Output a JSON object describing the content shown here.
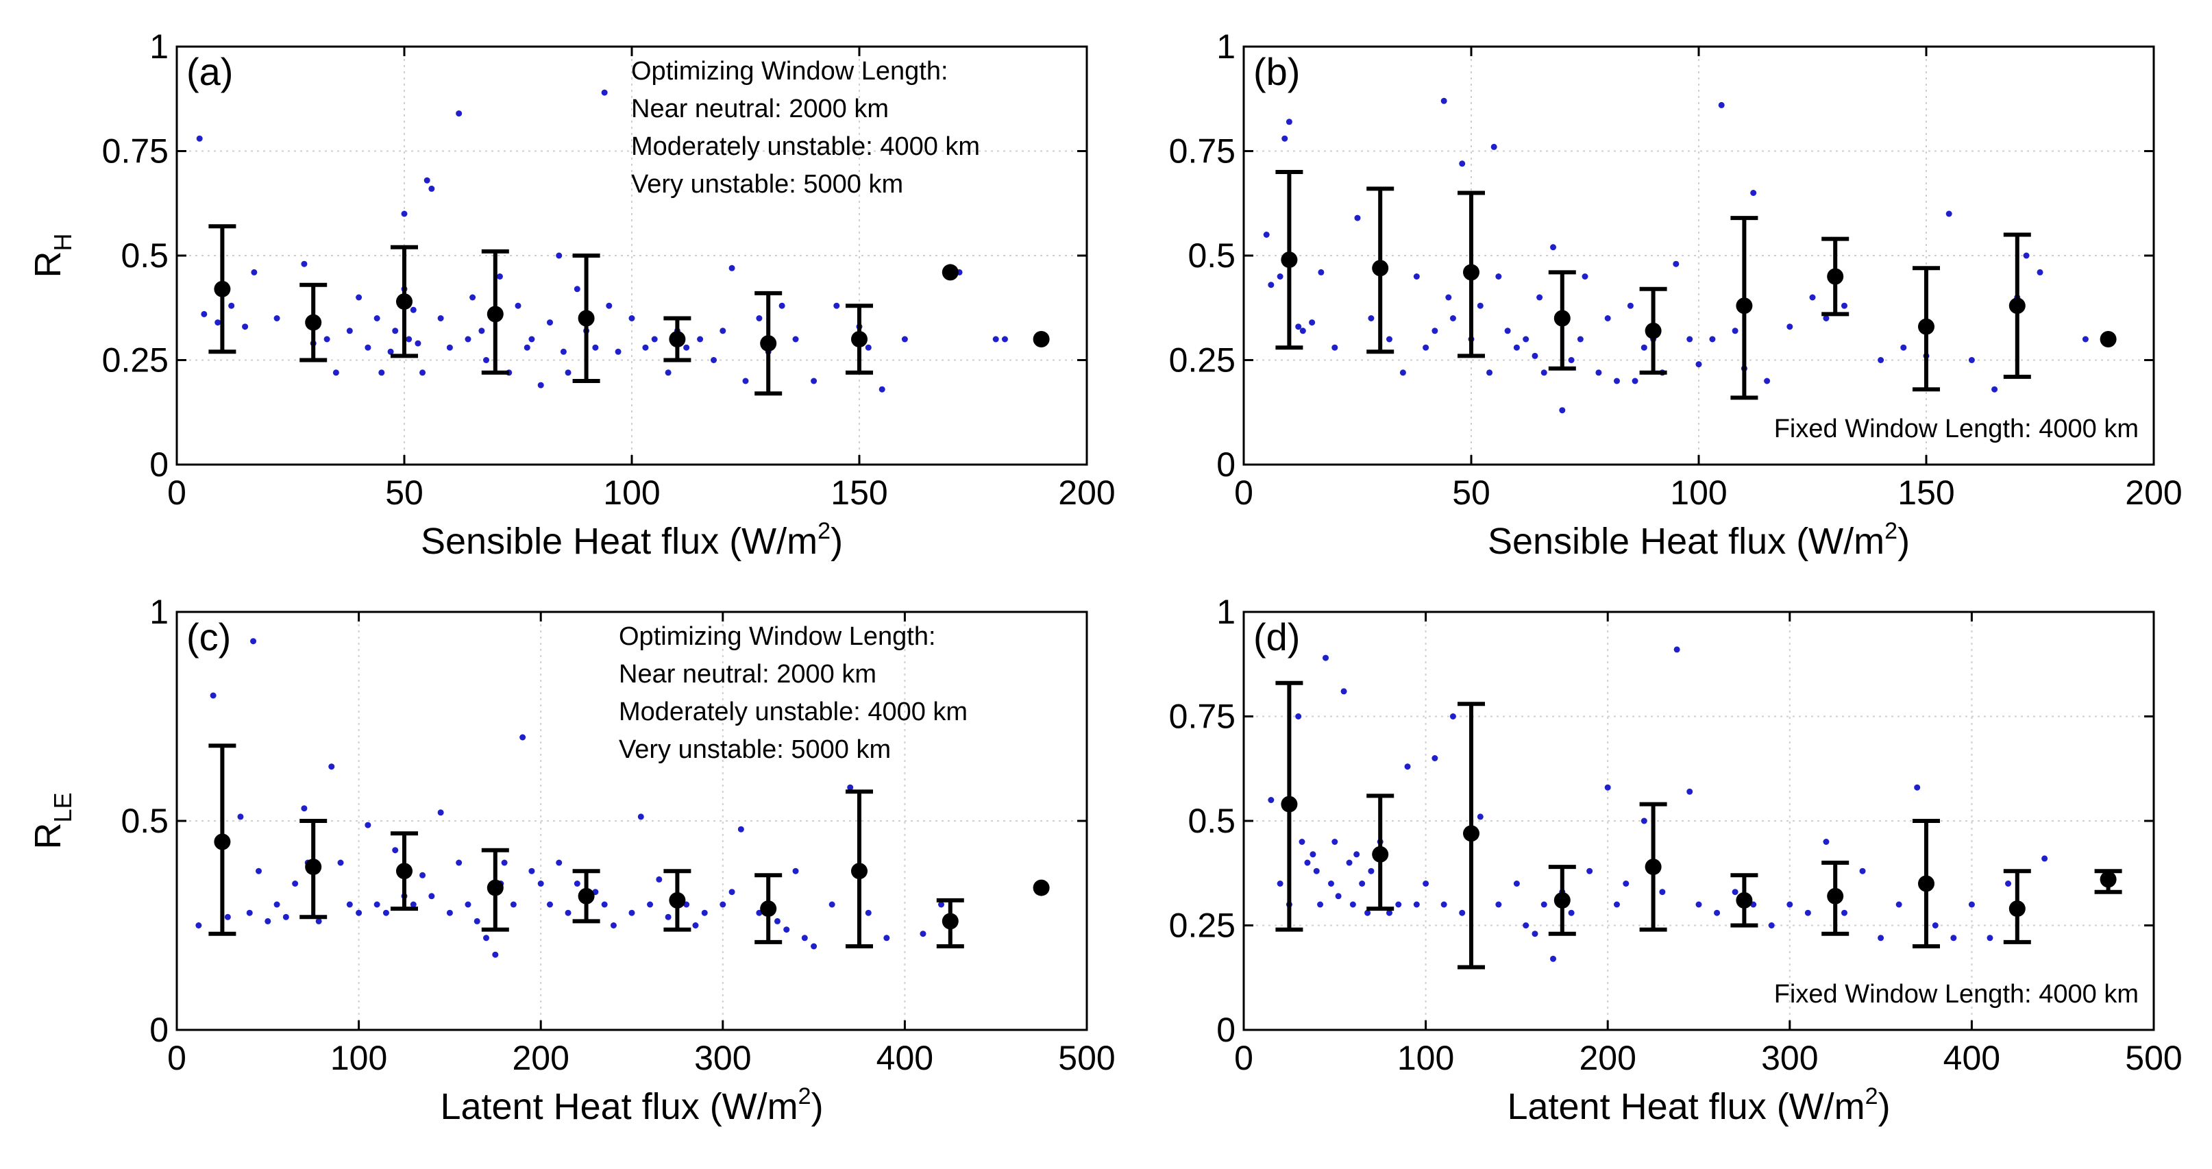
{
  "chart_data": [
    {
      "type": "scatter",
      "panel_label": "(a)",
      "xlabel": "Sensible Heat flux (W/m",
      "xlabel_sup": "2",
      "xlabel_end": ")",
      "ylabel": "R",
      "ylabel_sub": "H",
      "xlim": [
        0,
        200
      ],
      "ylim": [
        0,
        1
      ],
      "xticks": [
        0,
        50,
        100,
        150,
        200
      ],
      "yticks": [
        0,
        0.25,
        0.5,
        0.75,
        1
      ],
      "ytick_labels": [
        "0",
        "0.25",
        "0.5",
        "0.75",
        "1"
      ],
      "annotation": [
        "Optimizing Window Length:",
        "Near neutral: 2000 km",
        "Moderately unstable: 4000 km",
        "Very unstable: 5000 km"
      ],
      "annotation_position": "top-right",
      "grid": true,
      "scatter": {
        "color": "#1f1fcc",
        "x": [
          5,
          6,
          9,
          10,
          12,
          15,
          17,
          22,
          28,
          30,
          33,
          35,
          38,
          40,
          42,
          44,
          45,
          47,
          48,
          50,
          50,
          51,
          52,
          53,
          54,
          55,
          56,
          58,
          60,
          62,
          64,
          65,
          67,
          68,
          70,
          71,
          73,
          75,
          77,
          78,
          80,
          82,
          84,
          85,
          86,
          88,
          90,
          92,
          94,
          95,
          97,
          100,
          103,
          105,
          108,
          110,
          112,
          115,
          118,
          120,
          122,
          125,
          128,
          130,
          133,
          136,
          140,
          145,
          150,
          152,
          155,
          160,
          172,
          180,
          182
        ],
        "y": [
          0.78,
          0.36,
          0.34,
          0.43,
          0.38,
          0.33,
          0.46,
          0.35,
          0.48,
          0.29,
          0.3,
          0.22,
          0.32,
          0.4,
          0.28,
          0.35,
          0.22,
          0.27,
          0.32,
          0.6,
          0.42,
          0.3,
          0.37,
          0.29,
          0.22,
          0.68,
          0.66,
          0.35,
          0.28,
          0.84,
          0.3,
          0.4,
          0.32,
          0.25,
          0.35,
          0.45,
          0.22,
          0.38,
          0.28,
          0.3,
          0.19,
          0.34,
          0.5,
          0.27,
          0.22,
          0.42,
          0.32,
          0.28,
          0.89,
          0.38,
          0.27,
          0.35,
          0.28,
          0.3,
          0.22,
          0.32,
          0.28,
          0.3,
          0.25,
          0.32,
          0.47,
          0.2,
          0.35,
          0.27,
          0.38,
          0.3,
          0.2,
          0.38,
          0.33,
          0.28,
          0.18,
          0.3,
          0.46,
          0.3,
          0.3
        ]
      },
      "binned_means": {
        "x": [
          10,
          30,
          50,
          70,
          90,
          110,
          130,
          150,
          170,
          190
        ],
        "mean": [
          0.42,
          0.34,
          0.39,
          0.36,
          0.35,
          0.3,
          0.29,
          0.3,
          0.46,
          0.3
        ],
        "lower": [
          0.27,
          0.25,
          0.26,
          0.22,
          0.2,
          0.25,
          0.17,
          0.22,
          null,
          null
        ],
        "upper": [
          0.57,
          0.43,
          0.52,
          0.51,
          0.5,
          0.35,
          0.41,
          0.38,
          null,
          null
        ]
      }
    },
    {
      "type": "scatter",
      "panel_label": "(b)",
      "xlabel": "Sensible Heat flux (W/m",
      "xlabel_sup": "2",
      "xlabel_end": ")",
      "ylabel": "",
      "ylabel_sub": "",
      "xlim": [
        0,
        200
      ],
      "ylim": [
        0,
        1
      ],
      "xticks": [
        0,
        50,
        100,
        150,
        200
      ],
      "yticks": [
        0,
        0.25,
        0.5,
        0.75,
        1
      ],
      "ytick_labels": [
        "0",
        "0.25",
        "0.5",
        "0.75",
        "1"
      ],
      "annotation": [
        "Fixed Window Length: 4000 km"
      ],
      "annotation_position": "bottom-right",
      "grid": true,
      "scatter": {
        "color": "#1f1fcc",
        "x": [
          5,
          6,
          8,
          9,
          10,
          12,
          13,
          15,
          17,
          20,
          25,
          28,
          32,
          35,
          38,
          40,
          42,
          44,
          45,
          46,
          48,
          50,
          52,
          54,
          55,
          56,
          58,
          60,
          62,
          64,
          65,
          66,
          68,
          70,
          71,
          72,
          74,
          75,
          78,
          80,
          82,
          85,
          86,
          88,
          90,
          92,
          95,
          98,
          100,
          103,
          105,
          108,
          110,
          112,
          115,
          120,
          125,
          128,
          132,
          140,
          145,
          150,
          155,
          160,
          165,
          170,
          172,
          175,
          185
        ],
        "y": [
          0.55,
          0.43,
          0.45,
          0.78,
          0.82,
          0.33,
          0.32,
          0.34,
          0.46,
          0.28,
          0.59,
          0.35,
          0.3,
          0.22,
          0.45,
          0.28,
          0.32,
          0.87,
          0.4,
          0.35,
          0.72,
          0.3,
          0.38,
          0.22,
          0.76,
          0.45,
          0.32,
          0.28,
          0.3,
          0.26,
          0.4,
          0.22,
          0.52,
          0.13,
          0.35,
          0.25,
          0.3,
          0.45,
          0.22,
          0.35,
          0.2,
          0.38,
          0.2,
          0.28,
          0.3,
          0.22,
          0.48,
          0.3,
          0.24,
          0.3,
          0.86,
          0.32,
          0.23,
          0.65,
          0.2,
          0.33,
          0.4,
          0.35,
          0.38,
          0.25,
          0.28,
          0.26,
          0.6,
          0.25,
          0.18,
          0.4,
          0.5,
          0.46,
          0.3
        ]
      },
      "binned_means": {
        "x": [
          10,
          30,
          50,
          70,
          90,
          110,
          130,
          150,
          170,
          190
        ],
        "mean": [
          0.49,
          0.47,
          0.46,
          0.35,
          0.32,
          0.38,
          0.45,
          0.33,
          0.38,
          0.3
        ],
        "lower": [
          0.28,
          0.27,
          0.26,
          0.23,
          0.22,
          0.16,
          0.36,
          0.18,
          0.21,
          null
        ],
        "upper": [
          0.7,
          0.66,
          0.65,
          0.46,
          0.42,
          0.59,
          0.54,
          0.47,
          0.55,
          null
        ]
      }
    },
    {
      "type": "scatter",
      "panel_label": "(c)",
      "xlabel": "Latent Heat flux (W/m",
      "xlabel_sup": "2",
      "xlabel_end": ")",
      "ylabel": "R",
      "ylabel_sub": "LE",
      "xlim": [
        0,
        500
      ],
      "ylim": [
        0,
        1
      ],
      "xticks": [
        0,
        100,
        200,
        300,
        400,
        500
      ],
      "yticks": [
        0,
        0.5,
        1
      ],
      "ytick_labels": [
        "0",
        "0.5",
        "1"
      ],
      "annotation": [
        "Optimizing Window Length:",
        "Near neutral: 2000 km",
        "Moderately unstable: 4000 km",
        "Very unstable: 5000 km"
      ],
      "annotation_position": "top-right",
      "grid": true,
      "scatter": {
        "color": "#1f1fcc",
        "x": [
          12,
          20,
          28,
          35,
          40,
          42,
          45,
          50,
          55,
          60,
          65,
          70,
          72,
          78,
          85,
          90,
          95,
          100,
          105,
          110,
          115,
          120,
          125,
          130,
          135,
          140,
          145,
          150,
          155,
          160,
          165,
          170,
          175,
          178,
          180,
          185,
          190,
          195,
          200,
          205,
          210,
          215,
          220,
          230,
          235,
          240,
          250,
          255,
          260,
          265,
          270,
          280,
          285,
          290,
          300,
          305,
          310,
          320,
          330,
          335,
          340,
          345,
          350,
          360,
          370,
          380,
          390,
          410,
          420
        ],
        "y": [
          0.25,
          0.8,
          0.27,
          0.51,
          0.28,
          0.93,
          0.38,
          0.26,
          0.3,
          0.27,
          0.35,
          0.53,
          0.4,
          0.26,
          0.63,
          0.4,
          0.3,
          0.28,
          0.49,
          0.3,
          0.28,
          0.43,
          0.32,
          0.3,
          0.37,
          0.32,
          0.52,
          0.28,
          0.4,
          0.3,
          0.26,
          0.22,
          0.18,
          0.35,
          0.4,
          0.3,
          0.7,
          0.38,
          0.35,
          0.3,
          0.4,
          0.28,
          0.35,
          0.33,
          0.3,
          0.25,
          0.28,
          0.51,
          0.3,
          0.36,
          0.27,
          0.3,
          0.25,
          0.28,
          0.3,
          0.33,
          0.48,
          0.28,
          0.26,
          0.24,
          0.38,
          0.22,
          0.2,
          0.3,
          0.58,
          0.28,
          0.22,
          0.23,
          0.3
        ]
      },
      "binned_means": {
        "x": [
          25,
          75,
          125,
          175,
          225,
          275,
          325,
          375,
          425,
          475
        ],
        "mean": [
          0.45,
          0.39,
          0.38,
          0.34,
          0.32,
          0.31,
          0.29,
          0.38,
          0.26,
          0.34
        ],
        "lower": [
          0.23,
          0.27,
          0.29,
          0.24,
          0.26,
          0.24,
          0.21,
          0.2,
          0.2,
          null
        ],
        "upper": [
          0.68,
          0.5,
          0.47,
          0.43,
          0.38,
          0.38,
          0.37,
          0.57,
          0.31,
          null
        ]
      }
    },
    {
      "type": "scatter",
      "panel_label": "(d)",
      "xlabel": "Latent Heat flux (W/m",
      "xlabel_sup": "2",
      "xlabel_end": ")",
      "ylabel": "",
      "ylabel_sub": "",
      "xlim": [
        0,
        500
      ],
      "ylim": [
        0,
        1
      ],
      "xticks": [
        0,
        100,
        200,
        300,
        400,
        500
      ],
      "yticks": [
        0,
        0.25,
        0.5,
        0.75,
        1
      ],
      "ytick_labels": [
        "0",
        "0.25",
        "0.5",
        "0.75",
        "1"
      ],
      "annotation": [
        "Fixed Window Length: 4000 km"
      ],
      "annotation_position": "bottom-right",
      "grid": true,
      "scatter": {
        "color": "#1f1fcc",
        "x": [
          15,
          20,
          25,
          30,
          32,
          35,
          38,
          40,
          42,
          45,
          48,
          50,
          52,
          55,
          58,
          60,
          62,
          65,
          68,
          70,
          75,
          80,
          85,
          90,
          95,
          100,
          105,
          110,
          115,
          120,
          130,
          140,
          150,
          155,
          160,
          165,
          170,
          175,
          180,
          190,
          200,
          205,
          210,
          220,
          230,
          238,
          245,
          250,
          260,
          270,
          280,
          290,
          300,
          310,
          320,
          330,
          340,
          350,
          360,
          370,
          380,
          390,
          400,
          410,
          420,
          440
        ],
        "y": [
          0.55,
          0.35,
          0.3,
          0.75,
          0.45,
          0.4,
          0.42,
          0.38,
          0.3,
          0.89,
          0.35,
          0.45,
          0.32,
          0.81,
          0.4,
          0.3,
          0.42,
          0.35,
          0.28,
          0.38,
          0.45,
          0.28,
          0.3,
          0.63,
          0.3,
          0.35,
          0.65,
          0.3,
          0.75,
          0.28,
          0.51,
          0.3,
          0.35,
          0.25,
          0.23,
          0.3,
          0.17,
          0.33,
          0.28,
          0.38,
          0.58,
          0.3,
          0.35,
          0.5,
          0.33,
          0.91,
          0.57,
          0.3,
          0.28,
          0.33,
          0.3,
          0.25,
          0.3,
          0.28,
          0.45,
          0.28,
          0.38,
          0.22,
          0.3,
          0.58,
          0.25,
          0.22,
          0.3,
          0.22,
          0.35,
          0.41
        ]
      },
      "binned_means": {
        "x": [
          25,
          75,
          125,
          175,
          225,
          275,
          325,
          375,
          425,
          475
        ],
        "mean": [
          0.54,
          0.42,
          0.47,
          0.31,
          0.39,
          0.31,
          0.32,
          0.35,
          0.29,
          0.36
        ],
        "lower": [
          0.24,
          0.29,
          0.15,
          0.23,
          0.24,
          0.25,
          0.23,
          0.2,
          0.21,
          0.33
        ],
        "upper": [
          0.83,
          0.56,
          0.78,
          0.39,
          0.54,
          0.37,
          0.4,
          0.5,
          0.38,
          0.38
        ]
      }
    }
  ]
}
